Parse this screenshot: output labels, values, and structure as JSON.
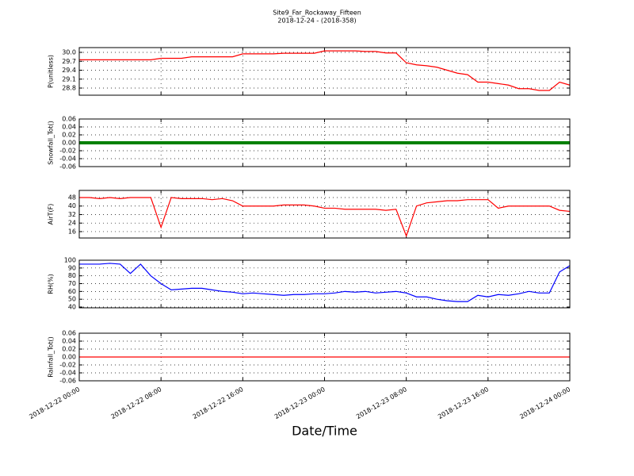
{
  "chart_data": [
    {
      "type": "line",
      "title": "Site9_Far_Rockaway_Fifteen",
      "subtitle": "2018-12-24 - (2018-358)",
      "ylabel": "P(unitless)",
      "x": [
        "2018-12-22 00:00",
        "2018-12-22 01:00",
        "2018-12-22 02:00",
        "2018-12-22 03:00",
        "2018-12-22 04:00",
        "2018-12-22 05:00",
        "2018-12-22 06:00",
        "2018-12-22 07:00",
        "2018-12-22 08:00",
        "2018-12-22 09:00",
        "2018-12-22 10:00",
        "2018-12-22 11:00",
        "2018-12-22 12:00",
        "2018-12-22 13:00",
        "2018-12-22 14:00",
        "2018-12-22 15:00",
        "2018-12-22 16:00",
        "2018-12-22 17:00",
        "2018-12-22 18:00",
        "2018-12-22 19:00",
        "2018-12-22 20:00",
        "2018-12-22 21:00",
        "2018-12-22 22:00",
        "2018-12-22 23:00",
        "2018-12-23 00:00",
        "2018-12-23 01:00",
        "2018-12-23 02:00",
        "2018-12-23 03:00",
        "2018-12-23 04:00",
        "2018-12-23 05:00",
        "2018-12-23 06:00",
        "2018-12-23 07:00",
        "2018-12-23 08:00",
        "2018-12-23 09:00",
        "2018-12-23 10:00",
        "2018-12-23 11:00",
        "2018-12-23 12:00",
        "2018-12-23 13:00",
        "2018-12-23 14:00",
        "2018-12-23 15:00",
        "2018-12-23 16:00",
        "2018-12-23 17:00",
        "2018-12-23 18:00",
        "2018-12-23 19:00",
        "2018-12-23 20:00",
        "2018-12-23 21:00",
        "2018-12-23 22:00",
        "2018-12-23 23:00",
        "2018-12-24 00:00"
      ],
      "series": [
        {
          "color": "#ff0000",
          "values": [
            29.75,
            29.75,
            29.75,
            29.75,
            29.75,
            29.75,
            29.75,
            29.75,
            29.8,
            29.8,
            29.8,
            29.85,
            29.85,
            29.85,
            29.85,
            29.85,
            29.95,
            29.95,
            29.95,
            29.95,
            29.97,
            29.97,
            29.97,
            29.97,
            30.05,
            30.05,
            30.05,
            30.05,
            30.03,
            30.03,
            29.98,
            29.98,
            29.65,
            29.58,
            29.55,
            29.5,
            29.4,
            29.3,
            29.25,
            29.0,
            29.0,
            28.95,
            28.9,
            28.78,
            28.78,
            28.72,
            28.72,
            29.0,
            28.9
          ]
        }
      ],
      "xlim": [
        "2018-12-22 00:00",
        "2018-12-24 00:00"
      ],
      "xticks": [
        "2018-12-22 00:00",
        "2018-12-22 08:00",
        "2018-12-22 16:00",
        "2018-12-23 00:00",
        "2018-12-23 08:00",
        "2018-12-23 16:00",
        "2018-12-24 00:00"
      ],
      "ylim": [
        28.56,
        30.16
      ],
      "yticks": [
        28.8,
        29.1,
        29.4,
        29.7,
        {
          "value": 30,
          "label": "30.0"
        }
      ],
      "grid": true
    },
    {
      "type": "line",
      "ylabel": "Snowfall_Tot()",
      "x": [
        "2018-12-22 00:00",
        "2018-12-22 01:00",
        "2018-12-22 02:00",
        "2018-12-22 03:00",
        "2018-12-22 04:00",
        "2018-12-22 05:00",
        "2018-12-22 06:00",
        "2018-12-22 07:00",
        "2018-12-22 08:00",
        "2018-12-22 09:00",
        "2018-12-22 10:00",
        "2018-12-22 11:00",
        "2018-12-22 12:00",
        "2018-12-22 13:00",
        "2018-12-22 14:00",
        "2018-12-22 15:00",
        "2018-12-22 16:00",
        "2018-12-22 17:00",
        "2018-12-22 18:00",
        "2018-12-22 19:00",
        "2018-12-22 20:00",
        "2018-12-22 21:00",
        "2018-12-22 22:00",
        "2018-12-22 23:00",
        "2018-12-23 00:00",
        "2018-12-23 01:00",
        "2018-12-23 02:00",
        "2018-12-23 03:00",
        "2018-12-23 04:00",
        "2018-12-23 05:00",
        "2018-12-23 06:00",
        "2018-12-23 07:00",
        "2018-12-23 08:00",
        "2018-12-23 09:00",
        "2018-12-23 10:00",
        "2018-12-23 11:00",
        "2018-12-23 12:00",
        "2018-12-23 13:00",
        "2018-12-23 14:00",
        "2018-12-23 15:00",
        "2018-12-23 16:00",
        "2018-12-23 17:00",
        "2018-12-23 18:00",
        "2018-12-23 19:00",
        "2018-12-23 20:00",
        "2018-12-23 21:00",
        "2018-12-23 22:00",
        "2018-12-23 23:00",
        "2018-12-24 00:00"
      ],
      "series": [
        {
          "color": "#008000",
          "values": [
            0,
            0,
            0,
            0,
            0,
            0,
            0,
            0,
            0,
            0,
            0,
            0,
            0,
            0,
            0,
            0,
            0,
            0,
            0,
            0,
            0,
            0,
            0,
            0,
            0,
            0,
            0,
            0,
            0,
            0,
            0,
            0,
            0,
            0,
            0,
            0,
            0,
            0,
            0,
            0,
            0,
            0,
            0,
            0,
            0,
            0,
            0,
            0,
            0
          ]
        }
      ],
      "xlim": [
        "2018-12-22 00:00",
        "2018-12-24 00:00"
      ],
      "xticks": [
        "2018-12-22 00:00",
        "2018-12-22 08:00",
        "2018-12-22 16:00",
        "2018-12-23 00:00",
        "2018-12-23 08:00",
        "2018-12-23 16:00",
        "2018-12-24 00:00"
      ],
      "ylim": [
        -0.06,
        0.06
      ],
      "yticks": [
        -0.06,
        -0.04,
        -0.02,
        {
          "value": 0,
          "label": "0.00"
        },
        0.02,
        0.04,
        0.06
      ],
      "grid": true
    },
    {
      "type": "line",
      "ylabel": "AirT(F)",
      "x": [
        "2018-12-22 00:00",
        "2018-12-22 01:00",
        "2018-12-22 02:00",
        "2018-12-22 03:00",
        "2018-12-22 04:00",
        "2018-12-22 05:00",
        "2018-12-22 06:00",
        "2018-12-22 07:00",
        "2018-12-22 08:00",
        "2018-12-22 09:00",
        "2018-12-22 10:00",
        "2018-12-22 11:00",
        "2018-12-22 12:00",
        "2018-12-22 13:00",
        "2018-12-22 14:00",
        "2018-12-22 15:00",
        "2018-12-22 16:00",
        "2018-12-22 17:00",
        "2018-12-22 18:00",
        "2018-12-22 19:00",
        "2018-12-22 20:00",
        "2018-12-22 21:00",
        "2018-12-22 22:00",
        "2018-12-22 23:00",
        "2018-12-23 00:00",
        "2018-12-23 01:00",
        "2018-12-23 02:00",
        "2018-12-23 03:00",
        "2018-12-23 04:00",
        "2018-12-23 05:00",
        "2018-12-23 06:00",
        "2018-12-23 07:00",
        "2018-12-23 08:00",
        "2018-12-23 09:00",
        "2018-12-23 10:00",
        "2018-12-23 11:00",
        "2018-12-23 12:00",
        "2018-12-23 13:00",
        "2018-12-23 14:00",
        "2018-12-23 15:00",
        "2018-12-23 16:00",
        "2018-12-23 17:00",
        "2018-12-23 18:00",
        "2018-12-23 19:00",
        "2018-12-23 20:00",
        "2018-12-23 21:00",
        "2018-12-23 22:00",
        "2018-12-23 23:00",
        "2018-12-24 00:00"
      ],
      "series": [
        {
          "color": "#ff0000",
          "values": [
            48,
            48,
            47,
            48,
            47,
            48,
            48,
            48,
            20,
            48,
            47,
            47,
            47,
            46,
            47,
            45,
            40,
            40,
            40,
            40,
            41,
            41,
            41,
            40,
            38,
            38,
            37,
            37,
            37,
            37,
            36,
            37,
            12,
            40,
            43,
            44,
            45,
            45,
            46,
            46,
            46,
            38,
            40,
            40,
            40,
            40,
            40,
            36,
            35
          ]
        }
      ],
      "xlim": [
        "2018-12-22 00:00",
        "2018-12-24 00:00"
      ],
      "xticks": [
        "2018-12-22 00:00",
        "2018-12-22 08:00",
        "2018-12-22 16:00",
        "2018-12-23 00:00",
        "2018-12-23 08:00",
        "2018-12-23 16:00",
        "2018-12-24 00:00"
      ],
      "ylim": [
        10,
        54.7
      ],
      "yticks": [
        16,
        24,
        32,
        40,
        48
      ],
      "grid": true
    },
    {
      "type": "line",
      "ylabel": "RH(%)",
      "x": [
        "2018-12-22 00:00",
        "2018-12-22 01:00",
        "2018-12-22 02:00",
        "2018-12-22 03:00",
        "2018-12-22 04:00",
        "2018-12-22 05:00",
        "2018-12-22 06:00",
        "2018-12-22 07:00",
        "2018-12-22 08:00",
        "2018-12-22 09:00",
        "2018-12-22 10:00",
        "2018-12-22 11:00",
        "2018-12-22 12:00",
        "2018-12-22 13:00",
        "2018-12-22 14:00",
        "2018-12-22 15:00",
        "2018-12-22 16:00",
        "2018-12-22 17:00",
        "2018-12-22 18:00",
        "2018-12-22 19:00",
        "2018-12-22 20:00",
        "2018-12-22 21:00",
        "2018-12-22 22:00",
        "2018-12-22 23:00",
        "2018-12-23 00:00",
        "2018-12-23 01:00",
        "2018-12-23 02:00",
        "2018-12-23 03:00",
        "2018-12-23 04:00",
        "2018-12-23 05:00",
        "2018-12-23 06:00",
        "2018-12-23 07:00",
        "2018-12-23 08:00",
        "2018-12-23 09:00",
        "2018-12-23 10:00",
        "2018-12-23 11:00",
        "2018-12-23 12:00",
        "2018-12-23 13:00",
        "2018-12-23 14:00",
        "2018-12-23 15:00",
        "2018-12-23 16:00",
        "2018-12-23 17:00",
        "2018-12-23 18:00",
        "2018-12-23 19:00",
        "2018-12-23 20:00",
        "2018-12-23 21:00",
        "2018-12-23 22:00",
        "2018-12-23 23:00",
        "2018-12-24 00:00"
      ],
      "series": [
        {
          "color": "#0000ff",
          "values": [
            95,
            95,
            95,
            96,
            95,
            83,
            95,
            80,
            70,
            62,
            63,
            64,
            64,
            62,
            60,
            59,
            57,
            58,
            57,
            56,
            55,
            56,
            56,
            57,
            57,
            58,
            60,
            59,
            60,
            58,
            59,
            60,
            58,
            53,
            53,
            50,
            48,
            47,
            47,
            55,
            53,
            56,
            55,
            57,
            60,
            58,
            58,
            85,
            93
          ]
        }
      ],
      "xlim": [
        "2018-12-22 00:00",
        "2018-12-24 00:00"
      ],
      "xticks": [
        "2018-12-22 00:00",
        "2018-12-22 08:00",
        "2018-12-22 16:00",
        "2018-12-23 00:00",
        "2018-12-23 08:00",
        "2018-12-23 16:00",
        "2018-12-24 00:00"
      ],
      "ylim": [
        39,
        100
      ],
      "yticks": [
        40,
        50,
        60,
        70,
        80,
        90,
        100
      ],
      "grid": true
    },
    {
      "type": "line",
      "ylabel": "Rainfall_Tot()",
      "xlabel": "Date/Time",
      "x": [
        "2018-12-22 00:00",
        "2018-12-22 01:00",
        "2018-12-22 02:00",
        "2018-12-22 03:00",
        "2018-12-22 04:00",
        "2018-12-22 05:00",
        "2018-12-22 06:00",
        "2018-12-22 07:00",
        "2018-12-22 08:00",
        "2018-12-22 09:00",
        "2018-12-22 10:00",
        "2018-12-22 11:00",
        "2018-12-22 12:00",
        "2018-12-22 13:00",
        "2018-12-22 14:00",
        "2018-12-22 15:00",
        "2018-12-22 16:00",
        "2018-12-22 17:00",
        "2018-12-22 18:00",
        "2018-12-22 19:00",
        "2018-12-22 20:00",
        "2018-12-22 21:00",
        "2018-12-22 22:00",
        "2018-12-22 23:00",
        "2018-12-23 00:00",
        "2018-12-23 01:00",
        "2018-12-23 02:00",
        "2018-12-23 03:00",
        "2018-12-23 04:00",
        "2018-12-23 05:00",
        "2018-12-23 06:00",
        "2018-12-23 07:00",
        "2018-12-23 08:00",
        "2018-12-23 09:00",
        "2018-12-23 10:00",
        "2018-12-23 11:00",
        "2018-12-23 12:00",
        "2018-12-23 13:00",
        "2018-12-23 14:00",
        "2018-12-23 15:00",
        "2018-12-23 16:00",
        "2018-12-23 17:00",
        "2018-12-23 18:00",
        "2018-12-23 19:00",
        "2018-12-23 20:00",
        "2018-12-23 21:00",
        "2018-12-23 22:00",
        "2018-12-23 23:00",
        "2018-12-24 00:00"
      ],
      "series": [
        {
          "color": "#ff0000",
          "values": [
            0,
            0,
            0,
            0,
            0,
            0,
            0,
            0,
            0,
            0,
            0,
            0,
            0,
            0,
            0,
            0,
            0,
            0,
            0,
            0,
            0,
            0,
            0,
            0,
            0,
            0,
            0,
            0,
            0,
            0,
            0,
            0,
            0,
            0,
            0,
            0,
            0,
            0,
            0,
            0,
            0,
            0,
            0,
            0,
            0,
            0,
            0,
            0,
            0
          ]
        }
      ],
      "xlim": [
        "2018-12-22 00:00",
        "2018-12-24 00:00"
      ],
      "xticks": [
        "2018-12-22 00:00",
        "2018-12-22 08:00",
        "2018-12-22 16:00",
        "2018-12-23 00:00",
        "2018-12-23 08:00",
        "2018-12-23 16:00",
        "2018-12-24 00:00"
      ],
      "ylim": [
        -0.06,
        0.06
      ],
      "yticks": [
        -0.06,
        -0.04,
        -0.02,
        {
          "value": 0,
          "label": "0.00"
        },
        0.02,
        0.04,
        0.06
      ],
      "grid": true
    }
  ]
}
